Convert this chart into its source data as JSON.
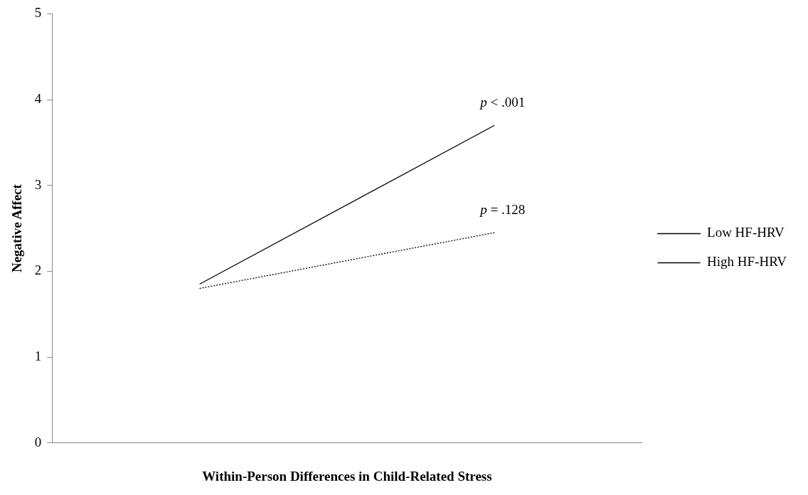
{
  "chart_data": {
    "type": "line",
    "xlabel": "Within-Person Differences in Child-Related Stress",
    "ylabel": "Negative Affect",
    "categories": [
      null,
      null
    ],
    "series": [
      {
        "name": "Low HF-HRV",
        "color": "#000000",
        "values": [
          1.85,
          3.7
        ],
        "line_style": "solid"
      },
      {
        "name": "High HF-HRV",
        "color": "#000000",
        "values": [
          1.8,
          2.45
        ],
        "line_style": "dotted"
      }
    ],
    "annotations": [
      "p < .001",
      "p = .128"
    ],
    "ylim": [
      0,
      5
    ],
    "yticks": [
      0,
      1,
      2,
      3,
      4,
      5
    ],
    "grid": false,
    "legend": "right",
    "marker": "none"
  }
}
